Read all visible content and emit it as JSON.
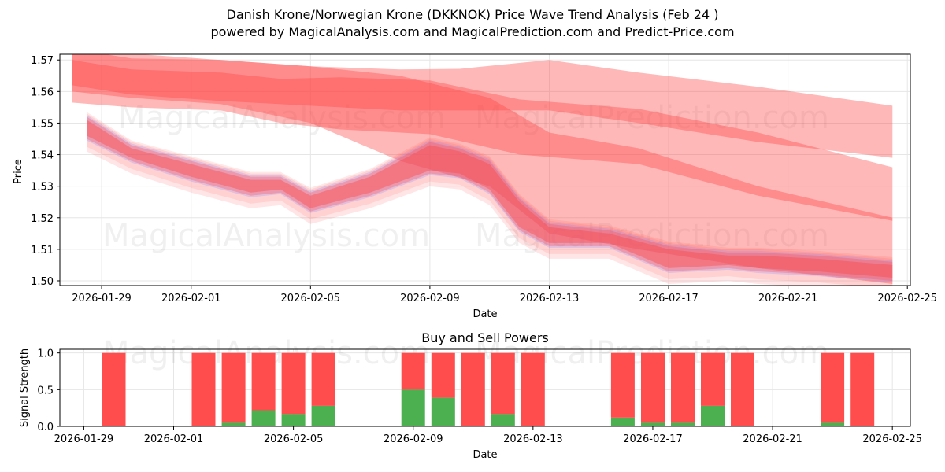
{
  "title": "Danish Krone/Norwegian Krone (DKKNOK) Price Wave Trend Analysis (Feb 24 )",
  "subtitle": "powered by MagicalAnalysis.com and MagicalPrediction.com and Predict-Price.com",
  "watermarks": [
    "MagicalAnalysis.com",
    "MagicalPrediction.com"
  ],
  "colors": {
    "sell": "#ff4c4c",
    "buy": "#4caf50",
    "band_red": "#ff4444",
    "band_blue": "#8888ff",
    "grid": "#e6e6e6"
  },
  "chart_data": [
    {
      "type": "area",
      "name": "price-wave",
      "xlabel": "Date",
      "ylabel": "Price",
      "xlim": [
        "2026-01-27.6",
        "2026-02-25.1"
      ],
      "ylim": [
        1.4985,
        1.5718
      ],
      "x_ticks": [
        "2026-01-29",
        "2026-02-01",
        "2026-02-05",
        "2026-02-09",
        "2026-02-13",
        "2026-02-17",
        "2026-02-21",
        "2026-02-25"
      ],
      "y_ticks": [
        "1.50",
        "1.51",
        "1.52",
        "1.53",
        "1.54",
        "1.55",
        "1.56",
        "1.57"
      ],
      "grid": true,
      "series": [
        {
          "name": "upper-band-1",
          "dates": [
            "2026-01-28",
            "2026-01-30",
            "2026-02-02",
            "2026-02-05",
            "2026-02-08",
            "2026-02-10",
            "2026-02-13",
            "2026-02-16",
            "2026-02-20",
            "2026-02-24.5"
          ],
          "upper": [
            1.5735,
            1.5705,
            1.57,
            1.568,
            1.567,
            1.5672,
            1.57,
            1.566,
            1.5615,
            1.5555
          ],
          "lower": [
            1.562,
            1.559,
            1.557,
            1.5555,
            1.554,
            1.554,
            1.554,
            1.55,
            1.544,
            1.539
          ]
        },
        {
          "name": "upper-band-2",
          "dates": [
            "2026-01-28",
            "2026-01-30",
            "2026-02-02",
            "2026-02-04",
            "2026-02-06",
            "2026-02-09",
            "2026-02-12",
            "2026-02-16",
            "2026-02-20",
            "2026-02-24.5"
          ],
          "upper": [
            1.57,
            1.567,
            1.566,
            1.564,
            1.5645,
            1.5635,
            1.5575,
            1.5545,
            1.547,
            1.536
          ],
          "lower": [
            1.5565,
            1.555,
            1.554,
            1.55,
            1.548,
            1.5465,
            1.54,
            1.537,
            1.527,
            1.519
          ]
        },
        {
          "name": "upper-band-3",
          "dates": [
            "2026-01-28",
            "2026-01-30",
            "2026-02-02",
            "2026-02-05",
            "2026-02-08",
            "2026-02-11",
            "2026-02-13",
            "2026-02-16",
            "2026-02-20",
            "2026-02-24.5"
          ],
          "upper": [
            1.575,
            1.572,
            1.57,
            1.568,
            1.565,
            1.558,
            1.547,
            1.542,
            1.53,
            1.52
          ],
          "lower": [
            1.56,
            1.558,
            1.556,
            1.55,
            1.538,
            1.53,
            1.515,
            1.51,
            1.504,
            1.499
          ]
        },
        {
          "name": "dense-wave",
          "dates": [
            "2026-01-28.5",
            "2026-01-30",
            "2026-02-01",
            "2026-02-03",
            "2026-02-04",
            "2026-02-05",
            "2026-02-07",
            "2026-02-09",
            "2026-02-10",
            "2026-02-11",
            "2026-02-12",
            "2026-02-13",
            "2026-02-15",
            "2026-02-17",
            "2026-02-19",
            "2026-02-20",
            "2026-02-22",
            "2026-02-24.5"
          ],
          "upper": [
            1.552,
            1.543,
            1.538,
            1.533,
            1.533,
            1.528,
            1.534,
            1.544,
            1.542,
            1.538,
            1.526,
            1.518,
            1.516,
            1.511,
            1.509,
            1.509,
            1.508,
            1.506
          ],
          "lower": [
            1.544,
            1.537,
            1.531,
            1.526,
            1.527,
            1.521,
            1.526,
            1.533,
            1.532,
            1.527,
            1.515,
            1.51,
            1.51,
            1.502,
            1.503,
            1.502,
            1.501,
            1.499
          ]
        }
      ]
    },
    {
      "type": "bar",
      "name": "buy-sell-powers",
      "title": "Buy and Sell Powers",
      "xlabel": "Date",
      "ylabel": "Signal Strength",
      "ylim": [
        0,
        1.05
      ],
      "y_ticks": [
        "0.0",
        "0.5",
        "1.0"
      ],
      "x_ticks": [
        "2026-01-29",
        "2026-02-01",
        "2026-02-05",
        "2026-02-09",
        "2026-02-13",
        "2026-02-17",
        "2026-02-21",
        "2026-02-25"
      ],
      "dates": [
        "2026-01-30",
        "2026-02-02",
        "2026-02-03",
        "2026-02-04",
        "2026-02-05",
        "2026-02-06",
        "2026-02-09",
        "2026-02-10",
        "2026-02-11",
        "2026-02-12",
        "2026-02-13",
        "2026-02-16",
        "2026-02-17",
        "2026-02-18",
        "2026-02-19",
        "2026-02-20",
        "2026-02-23",
        "2026-02-24"
      ],
      "series": [
        {
          "name": "Buy",
          "values": [
            0,
            0,
            0.05,
            0.22,
            0.17,
            0.28,
            0.5,
            0.39,
            0,
            0.17,
            0,
            0.12,
            0.05,
            0.05,
            0.28,
            0,
            0.05,
            0
          ]
        },
        {
          "name": "Sell",
          "values": [
            1,
            1,
            0.95,
            0.78,
            0.83,
            0.72,
            0.5,
            0.61,
            1,
            0.83,
            1,
            0.88,
            0.95,
            0.95,
            0.72,
            1,
            0.95,
            1
          ]
        }
      ]
    }
  ]
}
